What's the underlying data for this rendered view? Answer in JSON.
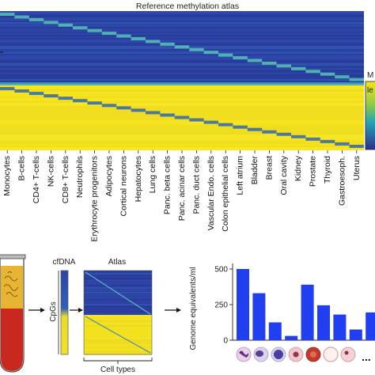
{
  "atlas": {
    "title": "Reference methylation atlas",
    "colorbar_label_partial": [
      "M",
      "le"
    ],
    "cell_types": [
      "Monocytes",
      "B-cells",
      "CD4+ T-cells",
      "NK-cells",
      "CD8+ T-cells",
      "Neutrophils",
      "Erythrocyte progenitors",
      "Adipocytes",
      "Cortical neurons",
      "Hepatocytes",
      "Lung cells",
      "Panc. beta cells",
      "Panc. acinar cells",
      "Panc. duct cells",
      "Vascular Endo. cells",
      "Colon epithelial cells",
      "Left atrium",
      "Bladder",
      "Breast",
      "Oral cavity",
      "Kidney",
      "Prostate",
      "Thyroid",
      "Gastroesoph.",
      "Uterus"
    ]
  },
  "workflow": {
    "cfdna_label": "cfDNA",
    "cpgs_label": "CpGs",
    "atlas_label": "Atlas",
    "cell_types_label": "Cell types"
  },
  "colors": {
    "high": "#f5e51b",
    "low": "#2a3b9e",
    "mid": "#3fb6b0",
    "bar": "#1f3ff0",
    "tube_liquid": "#c8281e"
  },
  "chart_data": {
    "type": "bar",
    "ylabel": "Genome equivalents/ml",
    "yticks": [
      0,
      250,
      500
    ],
    "ylim": [
      0,
      520
    ],
    "values": [
      500,
      330,
      125,
      30,
      390,
      245,
      180,
      75,
      195
    ],
    "more_label": "..."
  }
}
